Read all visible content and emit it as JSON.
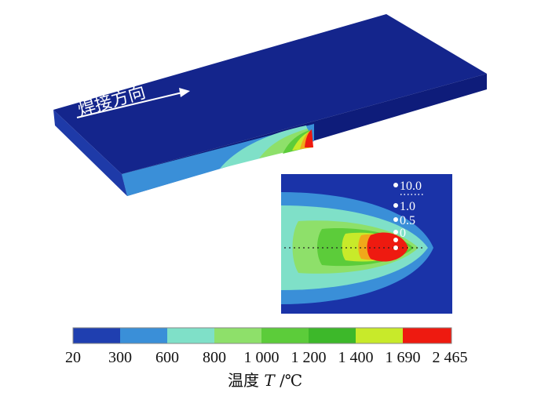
{
  "direction_label": "焊接方向",
  "inset_points": [
    "10.0",
    "1.0",
    "0.5",
    "0"
  ],
  "colorbar": {
    "ticks": [
      "20",
      "300",
      "600",
      "800",
      "1 000",
      "1 200",
      "1 400",
      "1 690",
      "2 465"
    ],
    "colors": [
      "#1f3fb0",
      "#3a8fd8",
      "#7fe0c8",
      "#8ee06a",
      "#5ccc3a",
      "#3db82a",
      "#c8ea2a",
      "#ee1a10"
    ],
    "title_prefix": "温度 ",
    "title_var": "T",
    "title_unit": "/℃"
  },
  "colors": {
    "plate_top": "#14258c",
    "plate_side": "#1a3aa6",
    "background": "#1a33a8"
  }
}
